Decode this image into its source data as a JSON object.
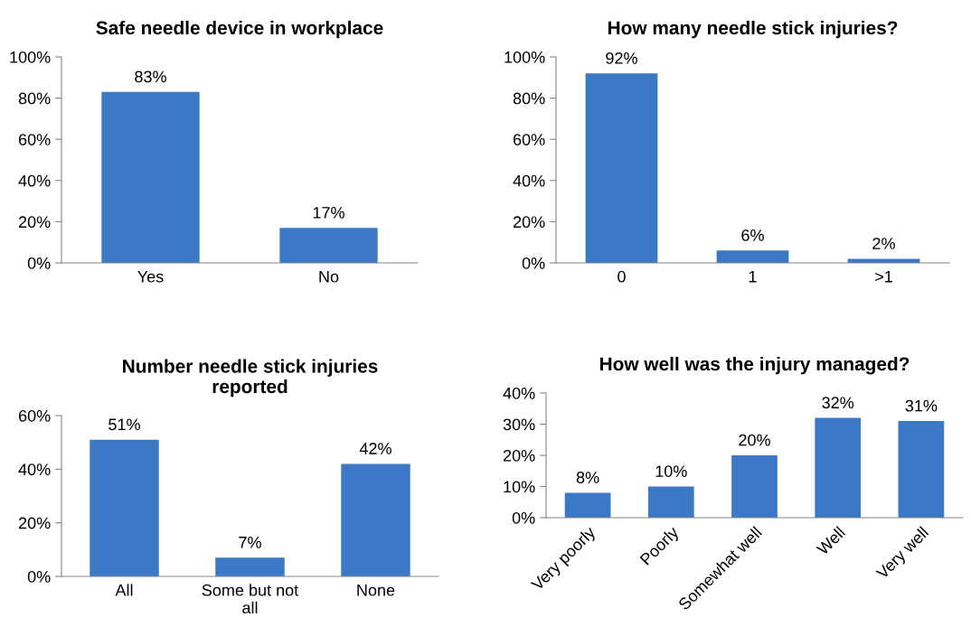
{
  "chart_data": [
    {
      "type": "bar",
      "title": "Safe needle device in workplace",
      "categories": [
        "Yes",
        "No"
      ],
      "values": [
        83,
        17
      ],
      "value_labels": [
        "83%",
        "17%"
      ],
      "color": "#3b78c5",
      "ylim": [
        0,
        100
      ],
      "yticks": [
        {
          "value": 0,
          "label": "0%"
        },
        {
          "value": 20,
          "label": "20%"
        },
        {
          "value": 40,
          "label": "40%"
        },
        {
          "value": 60,
          "label": "60%"
        },
        {
          "value": 80,
          "label": "80%"
        },
        {
          "value": 100,
          "label": "100%"
        }
      ],
      "grid": false,
      "legend": false
    },
    {
      "type": "bar",
      "title": "How many needle stick injuries?",
      "categories": [
        "0",
        "1",
        ">1"
      ],
      "values": [
        92,
        6,
        2
      ],
      "value_labels": [
        "92%",
        "6%",
        "2%"
      ],
      "color": "#3b78c5",
      "ylim": [
        0,
        100
      ],
      "yticks": [
        {
          "value": 0,
          "label": "0%"
        },
        {
          "value": 20,
          "label": "20%"
        },
        {
          "value": 40,
          "label": "40%"
        },
        {
          "value": 60,
          "label": "60%"
        },
        {
          "value": 80,
          "label": "80%"
        },
        {
          "value": 100,
          "label": "100%"
        }
      ],
      "grid": false,
      "legend": false
    },
    {
      "type": "bar",
      "title": "Number needle stick injuries reported",
      "categories": [
        "All",
        "Some but not all",
        "None"
      ],
      "values": [
        51,
        7,
        42
      ],
      "value_labels": [
        "51%",
        "7%",
        "42%"
      ],
      "color": "#3b78c5",
      "ylim": [
        0,
        60
      ],
      "yticks": [
        {
          "value": 0,
          "label": "0%"
        },
        {
          "value": 20,
          "label": "20%"
        },
        {
          "value": 40,
          "label": "40%"
        },
        {
          "value": 60,
          "label": "60%"
        }
      ],
      "grid": false,
      "legend": false
    },
    {
      "type": "bar",
      "title": "How well was the injury managed?",
      "categories": [
        "Very poorly",
        "Poorly",
        "Somewhat well",
        "Well",
        "Very well"
      ],
      "values": [
        8,
        10,
        20,
        32,
        31
      ],
      "value_labels": [
        "8%",
        "10%",
        "20%",
        "32%",
        "31%"
      ],
      "color": "#3b78c5",
      "ylim": [
        0,
        40
      ],
      "yticks": [
        {
          "value": 0,
          "label": "0%"
        },
        {
          "value": 10,
          "label": "10%"
        },
        {
          "value": 20,
          "label": "20%"
        },
        {
          "value": 30,
          "label": "30%"
        },
        {
          "value": 40,
          "label": "40%"
        }
      ],
      "grid": false,
      "legend": false
    }
  ]
}
